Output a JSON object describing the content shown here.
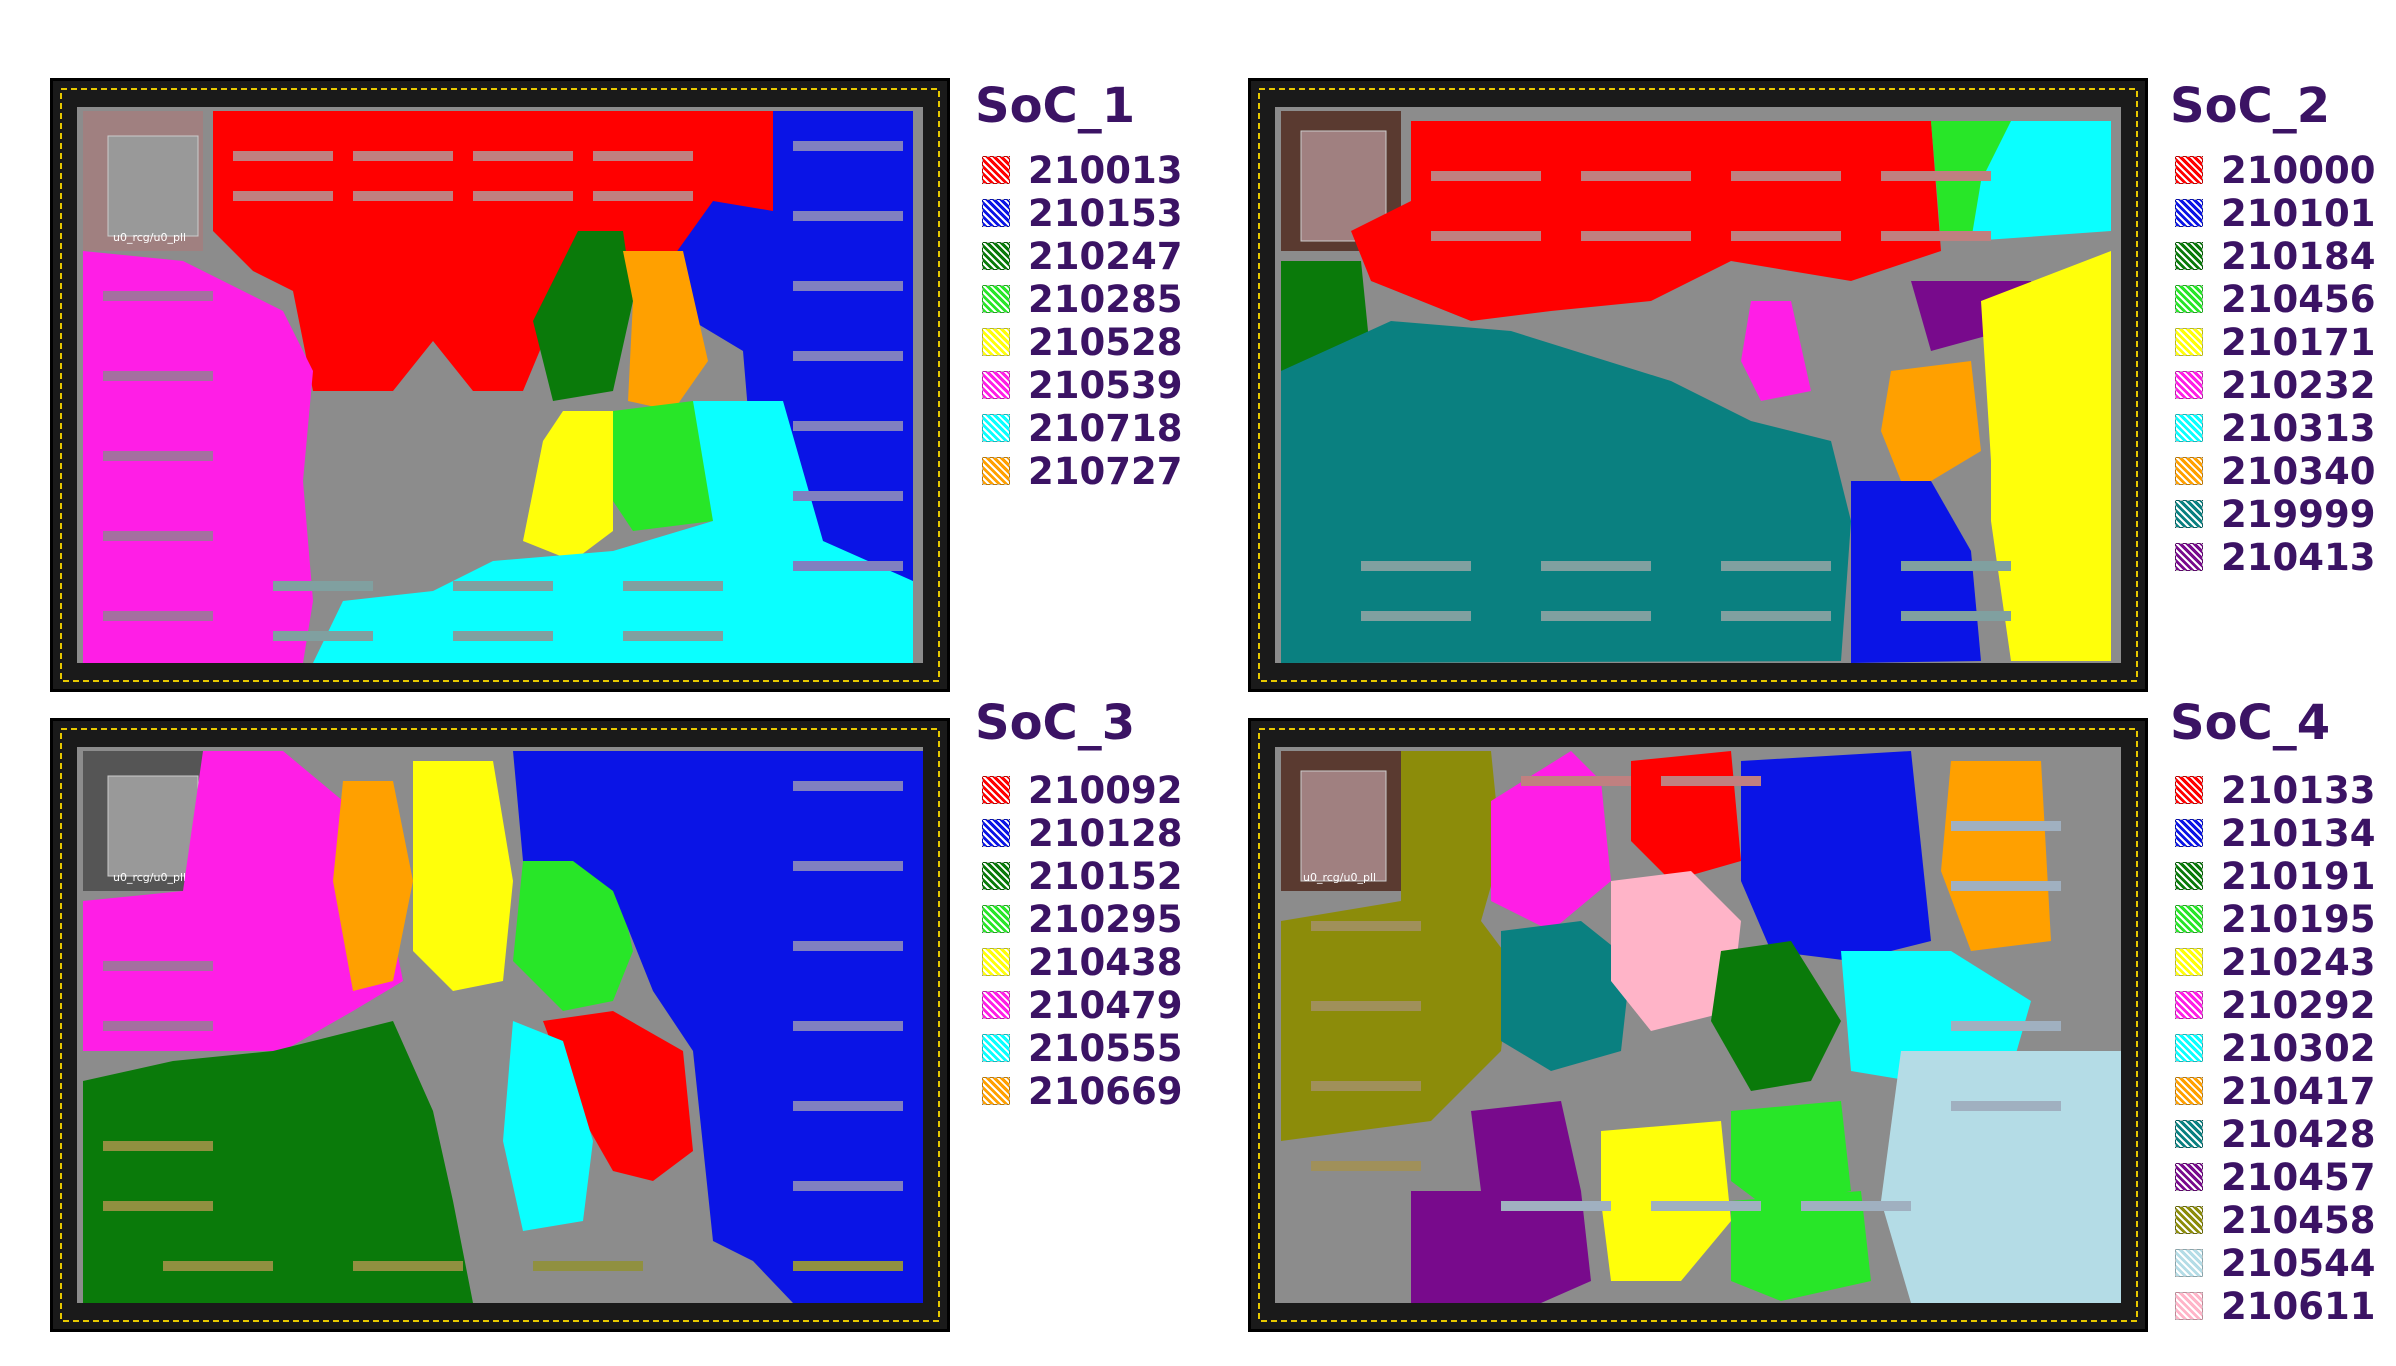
{
  "colors": {
    "c_red": "#ff0000",
    "c_blue": "#0a14e6",
    "c_dkgreen": "#0a7a0a",
    "c_green": "#28e628",
    "c_yellow": "#ffff0a",
    "c_magenta": "#ff1ee6",
    "c_cyan": "#0affff",
    "c_orange": "#ffa000",
    "c_teal": "#0a8080",
    "c_purple": "#780a8c",
    "c_olive": "#8c8c0a",
    "c_ltblue": "#b4dce6",
    "c_pink": "#ffb4c8",
    "background_gray": "#8c8c8c",
    "frame": "#1a1a1a"
  },
  "panels": [
    {
      "title": "SoC_1",
      "pll_label": "u0_rcg/u0_pll",
      "legend": [
        {
          "label": "210013",
          "color": "c_red"
        },
        {
          "label": "210153",
          "color": "c_blue"
        },
        {
          "label": "210247",
          "color": "c_dkgreen"
        },
        {
          "label": "210285",
          "color": "c_green"
        },
        {
          "label": "210528",
          "color": "c_yellow"
        },
        {
          "label": "210539",
          "color": "c_magenta"
        },
        {
          "label": "210718",
          "color": "c_cyan"
        },
        {
          "label": "210727",
          "color": "c_orange"
        }
      ]
    },
    {
      "title": "SoC_2",
      "pll_label": "",
      "legend": [
        {
          "label": "210000",
          "color": "c_red"
        },
        {
          "label": "210101",
          "color": "c_blue"
        },
        {
          "label": "210184",
          "color": "c_dkgreen"
        },
        {
          "label": "210456",
          "color": "c_green"
        },
        {
          "label": "210171",
          "color": "c_yellow"
        },
        {
          "label": "210232",
          "color": "c_magenta"
        },
        {
          "label": "210313",
          "color": "c_cyan"
        },
        {
          "label": "210340",
          "color": "c_orange"
        },
        {
          "label": "219999",
          "color": "c_teal"
        },
        {
          "label": "210413",
          "color": "c_purple"
        }
      ]
    },
    {
      "title": "SoC_3",
      "pll_label": "u0_rcg/u0_pll",
      "legend": [
        {
          "label": "210092",
          "color": "c_red"
        },
        {
          "label": "210128",
          "color": "c_blue"
        },
        {
          "label": "210152",
          "color": "c_dkgreen"
        },
        {
          "label": "210295",
          "color": "c_green"
        },
        {
          "label": "210438",
          "color": "c_yellow"
        },
        {
          "label": "210479",
          "color": "c_magenta"
        },
        {
          "label": "210555",
          "color": "c_cyan"
        },
        {
          "label": "210669",
          "color": "c_orange"
        }
      ]
    },
    {
      "title": "SoC_4",
      "pll_label": "u0_rcg/u0_pll",
      "legend": [
        {
          "label": "210133",
          "color": "c_red"
        },
        {
          "label": "210134",
          "color": "c_blue"
        },
        {
          "label": "210191",
          "color": "c_dkgreen"
        },
        {
          "label": "210195",
          "color": "c_green"
        },
        {
          "label": "210243",
          "color": "c_yellow"
        },
        {
          "label": "210292",
          "color": "c_magenta"
        },
        {
          "label": "210302",
          "color": "c_cyan"
        },
        {
          "label": "210417",
          "color": "c_orange"
        },
        {
          "label": "210428",
          "color": "c_teal"
        },
        {
          "label": "210457",
          "color": "c_purple"
        },
        {
          "label": "210458",
          "color": "c_olive"
        },
        {
          "label": "210544",
          "color": "c_ltblue"
        },
        {
          "label": "210611",
          "color": "c_pink"
        }
      ]
    }
  ]
}
